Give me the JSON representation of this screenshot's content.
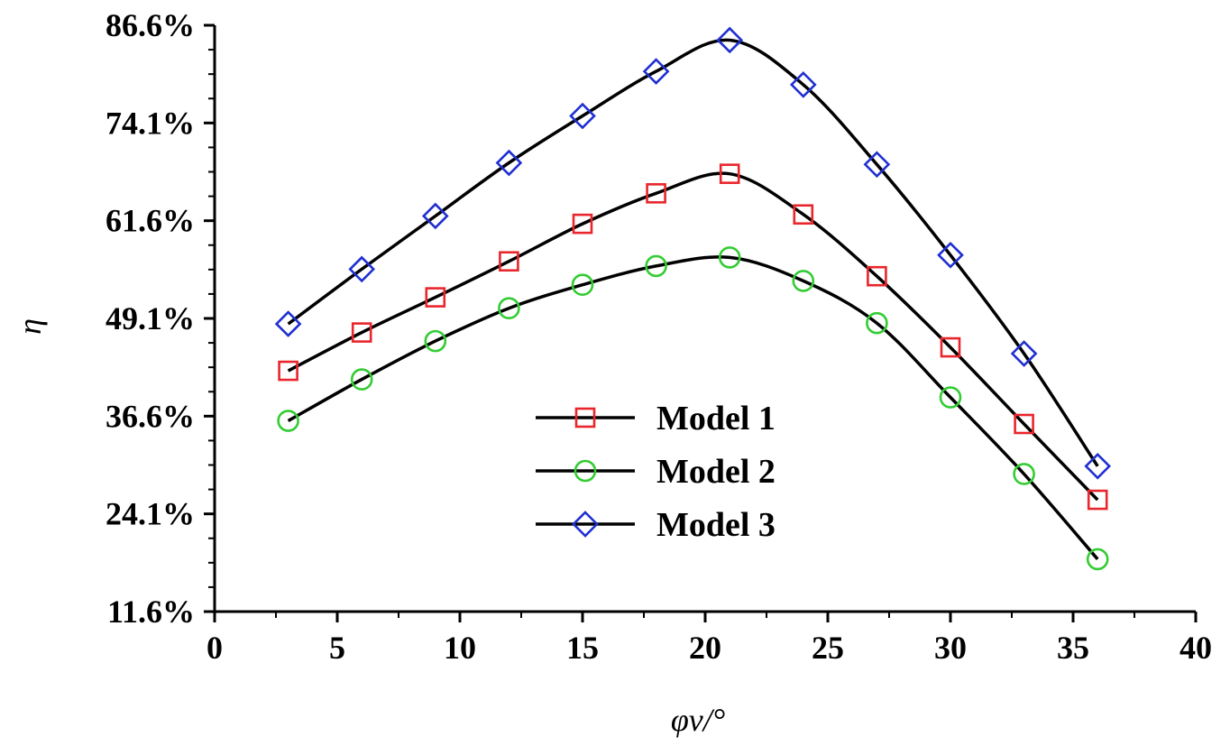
{
  "chart_data": {
    "type": "line",
    "title": "",
    "xlabel": "φv/°",
    "ylabel": "η",
    "xlim": [
      0,
      40
    ],
    "ylim": [
      11.6,
      86.6
    ],
    "x_ticks": [
      0,
      5,
      10,
      15,
      20,
      25,
      30,
      35,
      40
    ],
    "x_tick_labels": [
      "0",
      "5",
      "10",
      "15",
      "20",
      "25",
      "30",
      "35",
      "40"
    ],
    "y_ticks": [
      11.6,
      24.1,
      36.6,
      49.1,
      61.6,
      74.1,
      86.6
    ],
    "y_tick_labels": [
      "11.6%",
      "24.1%",
      "36.6%",
      "49.1%",
      "61.6%",
      "74.1%",
      "86.6%"
    ],
    "grid": false,
    "legend_position": "center",
    "x": [
      3,
      6,
      9,
      12,
      15,
      18,
      21,
      24,
      27,
      30,
      33,
      36
    ],
    "series": [
      {
        "name": "Model 1",
        "marker": "square",
        "marker_color": "#e8262c",
        "line_color": "#000000",
        "values": [
          42.4,
          47.3,
          51.8,
          56.4,
          61.2,
          65.1,
          67.6,
          62.4,
          54.5,
          45.4,
          35.6,
          25.9
        ]
      },
      {
        "name": "Model 2",
        "marker": "circle",
        "marker_color": "#33cc33",
        "line_color": "#000000",
        "values": [
          36.0,
          41.3,
          46.2,
          50.4,
          53.4,
          55.8,
          56.9,
          53.9,
          48.5,
          39.0,
          29.2,
          18.3
        ]
      },
      {
        "name": "Model 3",
        "marker": "diamond",
        "marker_color": "#1f2fd1",
        "line_color": "#000000",
        "values": [
          48.4,
          55.4,
          62.2,
          69.0,
          75.0,
          80.7,
          84.7,
          79.0,
          68.8,
          57.2,
          44.6,
          30.2
        ]
      }
    ]
  }
}
